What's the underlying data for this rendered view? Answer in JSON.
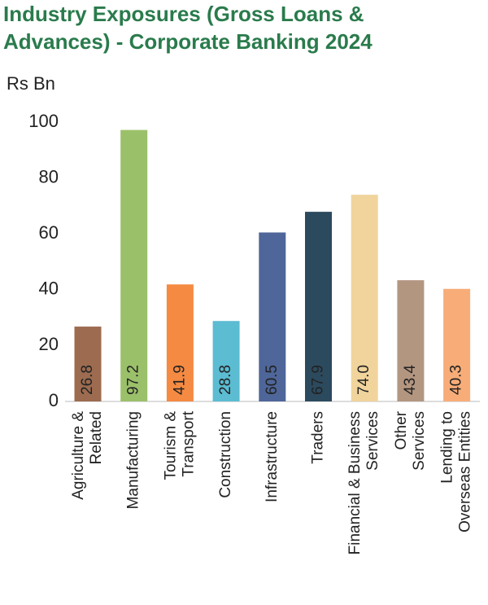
{
  "chart_data": {
    "type": "bar",
    "title": [
      "Industry Exposures (Gross Loans &",
      "Advances) - Corporate Banking 2024"
    ],
    "y_label": "Rs Bn",
    "categories": [
      [
        "Agriculture &",
        "Related"
      ],
      [
        "Manufacturing"
      ],
      [
        "Tourism &",
        "Transport"
      ],
      [
        "Construction"
      ],
      [
        "Infrastructure"
      ],
      [
        "Traders"
      ],
      [
        "Financial & Business",
        "Services"
      ],
      [
        "Other",
        "Services"
      ],
      [
        "Lending to",
        "Overseas Entities"
      ]
    ],
    "values": [
      26.8,
      97.2,
      41.9,
      28.8,
      60.5,
      67.9,
      74.0,
      43.4,
      40.3
    ],
    "value_labels": [
      "26.8",
      "97.2",
      "41.9",
      "28.8",
      "60.5",
      "67.9",
      "74.0",
      "43.4",
      "40.3"
    ],
    "colors": [
      "#9c6b50",
      "#9bc06a",
      "#f58a42",
      "#5bbcd2",
      "#4e6699",
      "#2c4a5e",
      "#f0d49c",
      "#b39680",
      "#f8ad78"
    ],
    "ylim": [
      0,
      100
    ],
    "yticks": [
      0,
      20,
      40,
      60,
      80,
      100
    ],
    "grid": false
  }
}
